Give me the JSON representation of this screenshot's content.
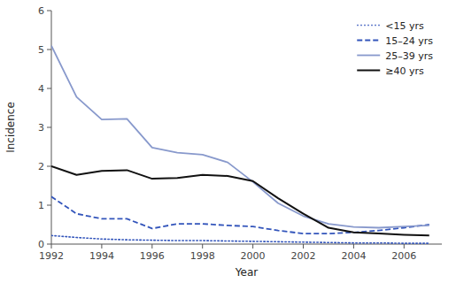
{
  "chart_data": {
    "type": "line",
    "xlabel": "Year",
    "ylabel": "Incidence",
    "x": [
      1992,
      1993,
      1994,
      1995,
      1996,
      1997,
      1998,
      1999,
      2000,
      2001,
      2002,
      2003,
      2004,
      2005,
      2006,
      2007
    ],
    "xlim": [
      1992,
      2007.5
    ],
    "xticks": [
      1992,
      1994,
      1996,
      1998,
      2000,
      2002,
      2004,
      2006
    ],
    "ylim": [
      0,
      6
    ],
    "yticks": [
      0,
      1,
      2,
      3,
      4,
      5,
      6
    ],
    "grid": false,
    "legend": "upper right",
    "series": [
      {
        "name": "<15 yrs",
        "color": "#3355bb",
        "line_style": "dotted",
        "values": [
          0.22,
          0.17,
          0.13,
          0.11,
          0.1,
          0.09,
          0.09,
          0.08,
          0.07,
          0.06,
          0.05,
          0.04,
          0.03,
          0.03,
          0.02,
          0.02
        ]
      },
      {
        "name": "15–24 yrs",
        "color": "#3355bb",
        "line_style": "dashed",
        "values": [
          1.22,
          0.78,
          0.65,
          0.65,
          0.4,
          0.52,
          0.52,
          0.48,
          0.45,
          0.35,
          0.27,
          0.27,
          0.3,
          0.35,
          0.42,
          0.5
        ]
      },
      {
        "name": "25–39 yrs",
        "color": "#8899cc",
        "line_style": "solid",
        "values": [
          5.1,
          3.78,
          3.2,
          3.22,
          2.48,
          2.35,
          2.3,
          2.1,
          1.6,
          1.05,
          0.72,
          0.52,
          0.44,
          0.42,
          0.45,
          0.48
        ]
      },
      {
        "name": "≥40 yrs",
        "color": "#111111",
        "line_style": "solid",
        "values": [
          2.0,
          1.78,
          1.88,
          1.9,
          1.68,
          1.7,
          1.78,
          1.75,
          1.62,
          1.18,
          0.78,
          0.42,
          0.3,
          0.27,
          0.24,
          0.22
        ]
      }
    ]
  }
}
